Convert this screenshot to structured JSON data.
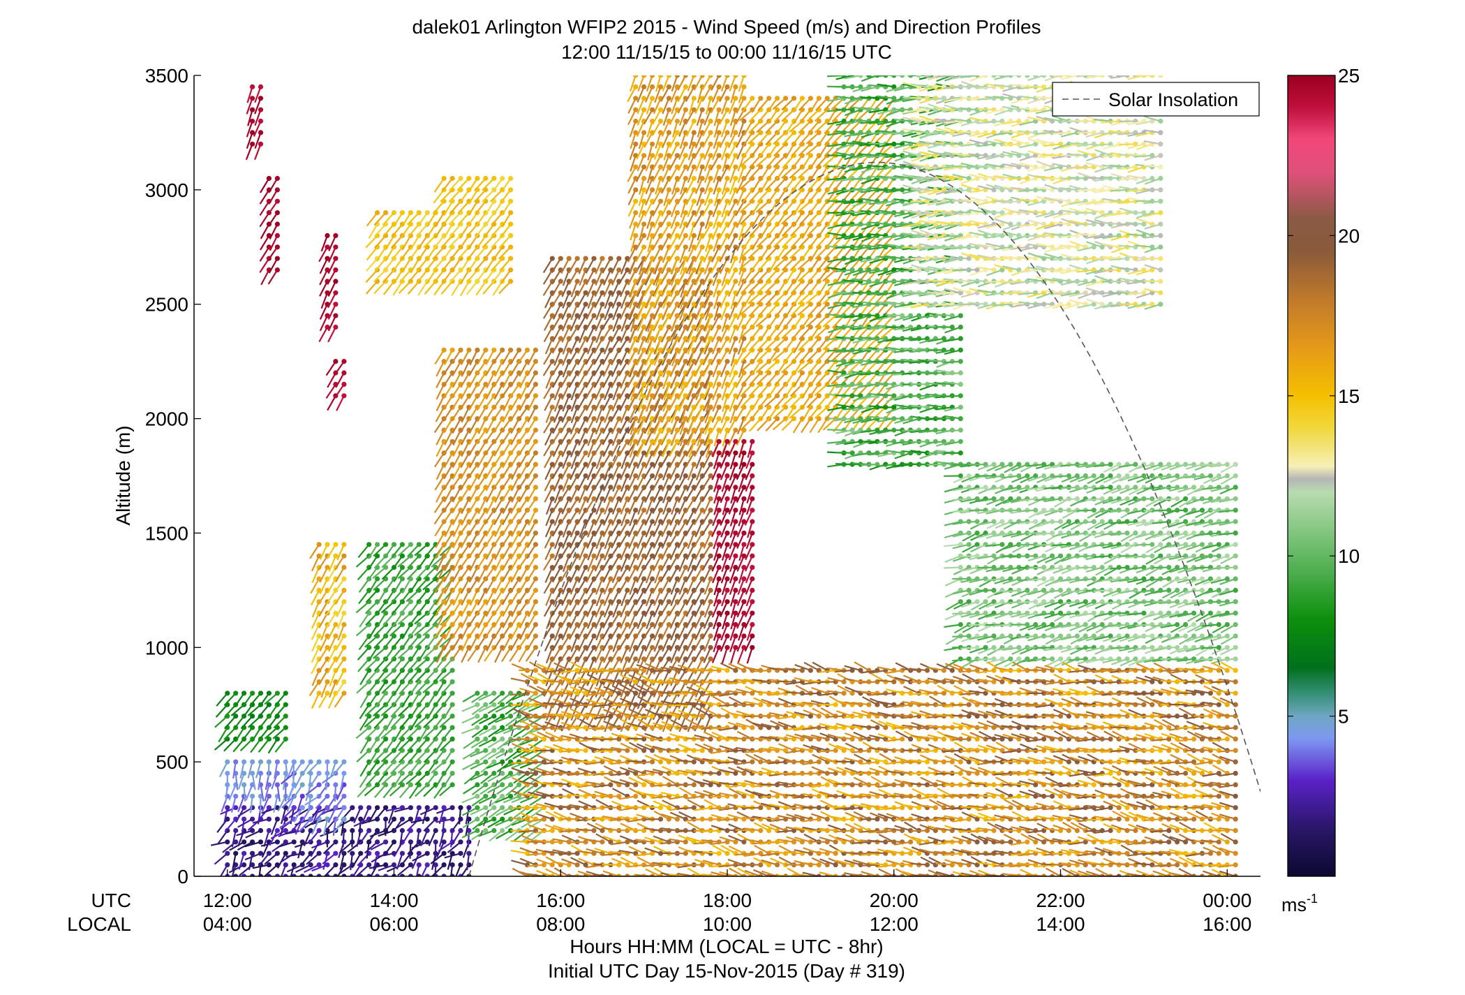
{
  "chart_data": {
    "type": "wind-barb profile",
    "title": "dalek01 Arlington WFIP2 2015 - Wind Speed (m/s) and Direction Profiles",
    "subtitle": "12:00 11/15/15 to 00:00 11/16/15  UTC",
    "ylabel": "Altitude (m)",
    "xlabel": "Hours HH:MM  (LOCAL = UTC - 8hr)",
    "xlabel2": "Initial UTC Day 15-Nov-2015 (Day # 319)",
    "row_label_utc": "UTC",
    "row_label_local": "LOCAL",
    "x_range_hours": [
      11.6,
      24.4
    ],
    "y_range_m": [
      0,
      3500
    ],
    "y_ticks": [
      0,
      500,
      1000,
      1500,
      2000,
      2500,
      3000,
      3500
    ],
    "x_ticks_hours": [
      12,
      14,
      16,
      18,
      20,
      22,
      24
    ],
    "x_tick_labels_utc": [
      "12:00",
      "14:00",
      "16:00",
      "18:00",
      "20:00",
      "22:00",
      "00:00"
    ],
    "x_tick_labels_local": [
      "04:00",
      "06:00",
      "08:00",
      "10:00",
      "12:00",
      "14:00",
      "16:00"
    ],
    "legend": {
      "position": "top-right",
      "entry": "Solar Insolation",
      "style": "dashed",
      "color": "#555555"
    },
    "solar_insolation_curve": {
      "start_hour": 14.9,
      "peak_hour": 19.8,
      "peak_altitude_m": 3120,
      "end_hour": 24.4,
      "end_altitude_m": 260
    },
    "colorbar": {
      "min": 0,
      "max": 25,
      "ticks": [
        5,
        10,
        15,
        20,
        25
      ],
      "unit_label": "ms",
      "unit_exponent": "-1",
      "stops": [
        {
          "v": 0,
          "c": "#0b0930"
        },
        {
          "v": 1.5,
          "c": "#2a1668"
        },
        {
          "v": 3,
          "c": "#5a22c8"
        },
        {
          "v": 4.3,
          "c": "#7e98f2"
        },
        {
          "v": 5,
          "c": "#6fa7c2"
        },
        {
          "v": 5.8,
          "c": "#2e8c6c"
        },
        {
          "v": 6.5,
          "c": "#00701c"
        },
        {
          "v": 8,
          "c": "#0c8f0c"
        },
        {
          "v": 10,
          "c": "#62b862"
        },
        {
          "v": 12,
          "c": "#b8dcb0"
        },
        {
          "v": 12.4,
          "c": "#b5b5b5"
        },
        {
          "v": 12.8,
          "c": "#f6efb6"
        },
        {
          "v": 14,
          "c": "#f1d83c"
        },
        {
          "v": 15,
          "c": "#f5c000"
        },
        {
          "v": 16.5,
          "c": "#e59a18"
        },
        {
          "v": 18,
          "c": "#c07a2a"
        },
        {
          "v": 19.5,
          "c": "#8a5a3a"
        },
        {
          "v": 20.5,
          "c": "#8a5a44"
        },
        {
          "v": 22,
          "c": "#e0507a"
        },
        {
          "v": 23,
          "c": "#f0477a"
        },
        {
          "v": 24,
          "c": "#c0103c"
        },
        {
          "v": 25,
          "c": "#9a0020"
        }
      ]
    },
    "profiles": {
      "time_start_hour": 12.2,
      "time_step_hours": 0.1,
      "altitude_step_m": 50,
      "regions": [
        {
          "t": [
            12.0,
            14.9
          ],
          "z": [
            0,
            320
          ],
          "speed": [
            1,
            3
          ],
          "dir": [
            180,
            260
          ]
        },
        {
          "t": [
            12.0,
            12.8
          ],
          "z": [
            320,
            530
          ],
          "speed": [
            3.5,
            5
          ],
          "dir": [
            170,
            210
          ]
        },
        {
          "t": [
            12.0,
            12.7
          ],
          "z": [
            600,
            800
          ],
          "speed": [
            7,
            8.5
          ],
          "dir": [
            210,
            230
          ]
        },
        {
          "t": [
            12.3,
            12.4
          ],
          "z": [
            3200,
            3480
          ],
          "speed": [
            24,
            25
          ],
          "dir": [
            195,
            205
          ]
        },
        {
          "t": [
            12.5,
            12.6
          ],
          "z": [
            2650,
            3080
          ],
          "speed": [
            24,
            25
          ],
          "dir": [
            205,
            215
          ]
        },
        {
          "t": [
            13.2,
            13.3
          ],
          "z": [
            2400,
            2800
          ],
          "speed": [
            24,
            25
          ],
          "dir": [
            200,
            210
          ]
        },
        {
          "t": [
            13.3,
            13.4
          ],
          "z": [
            2100,
            2270
          ],
          "speed": [
            24,
            25
          ],
          "dir": [
            205,
            215
          ]
        },
        {
          "t": [
            12.8,
            13.4
          ],
          "z": [
            250,
            520
          ],
          "speed": [
            3,
            5
          ],
          "dir": [
            180,
            240
          ]
        },
        {
          "t": [
            13.1,
            13.4
          ],
          "z": [
            790,
            1480
          ],
          "speed": [
            14,
            17
          ],
          "dir": [
            200,
            215
          ]
        },
        {
          "t": [
            13.7,
            14.7
          ],
          "z": [
            360,
            1480
          ],
          "speed": [
            8,
            10
          ],
          "dir": [
            210,
            230
          ]
        },
        {
          "t": [
            13.8,
            14.5
          ],
          "z": [
            2600,
            2920
          ],
          "speed": [
            14,
            16
          ],
          "dir": [
            210,
            225
          ]
        },
        {
          "t": [
            14.6,
            15.4
          ],
          "z": [
            2600,
            3070
          ],
          "speed": [
            14,
            16
          ],
          "dir": [
            210,
            225
          ]
        },
        {
          "t": [
            14.6,
            15.7
          ],
          "z": [
            1000,
            2300
          ],
          "speed": [
            16,
            18
          ],
          "dir": [
            205,
            215
          ]
        },
        {
          "t": [
            15.0,
            15.8
          ],
          "z": [
            200,
            800
          ],
          "speed": [
            8,
            11
          ],
          "dir": [
            230,
            250
          ]
        },
        {
          "t": [
            15.9,
            17.8
          ],
          "z": [
            700,
            2700
          ],
          "speed": [
            18,
            20
          ],
          "dir": [
            200,
            212
          ]
        },
        {
          "t": [
            16.9,
            18.2
          ],
          "z": [
            1900,
            3500
          ],
          "speed": [
            15,
            18
          ],
          "dir": [
            195,
            210
          ]
        },
        {
          "t": [
            17.9,
            18.3
          ],
          "z": [
            1000,
            1900
          ],
          "speed": [
            24,
            25
          ],
          "dir": [
            195,
            205
          ]
        },
        {
          "t": [
            18.3,
            20.0
          ],
          "z": [
            2000,
            3400
          ],
          "speed": [
            15,
            17
          ],
          "dir": [
            210,
            230
          ]
        },
        {
          "t": [
            19.4,
            20.8
          ],
          "z": [
            1800,
            3500
          ],
          "speed": [
            8,
            11
          ],
          "dir": [
            250,
            280
          ]
        },
        {
          "t": [
            20.3,
            23.2
          ],
          "z": [
            2500,
            3500
          ],
          "speed": [
            11,
            14
          ],
          "dir": [
            250,
            290
          ]
        },
        {
          "t": [
            20.8,
            24.1
          ],
          "z": [
            950,
            1800
          ],
          "speed": [
            9,
            12
          ],
          "dir": [
            240,
            270
          ]
        },
        {
          "t": [
            15.6,
            24.1
          ],
          "z": [
            0,
            900
          ],
          "speed": [
            15,
            20
          ],
          "dir": [
            260,
            300
          ]
        }
      ]
    }
  }
}
